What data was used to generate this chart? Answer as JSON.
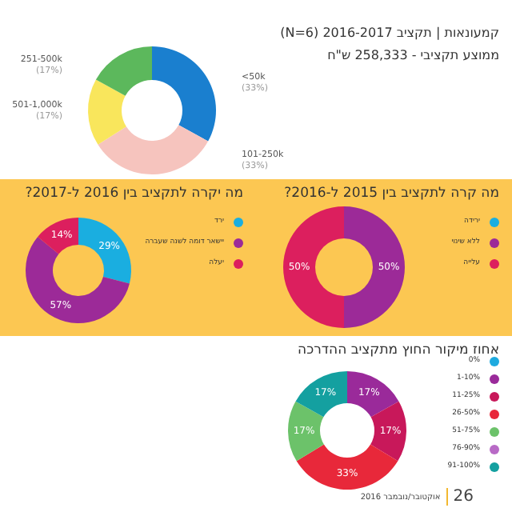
{
  "chart_data": [
    {
      "type": "donut",
      "title": "קמעונאות | תקציב 2016-2017 (N=6)",
      "subtitle": "ממוצע תקציבי - 258,333 ש\"ח",
      "categories": [
        "<50k",
        "101-250k",
        "501-1,000k",
        "251-500k"
      ],
      "values": [
        33,
        33,
        17,
        17
      ],
      "colors": [
        "#1a7fcf",
        "#f6c4be",
        "#f9e65c",
        "#5cb85c"
      ],
      "value_labels": [
        "(33%)",
        "(33%)",
        "(17%)",
        "(17%)"
      ]
    },
    {
      "type": "donut",
      "title": "מה קרה לתקציב בין 2015 ל-2016?",
      "categories": [
        "ירידה",
        "ללא שינוי",
        "עלייה"
      ],
      "values": [
        0,
        50,
        50
      ],
      "colors": [
        "#1aaee0",
        "#9c2a98",
        "#dc1f5e"
      ],
      "value_labels": [
        null,
        "50%",
        "50%"
      ],
      "legend": "right"
    },
    {
      "type": "donut",
      "title": "מה יקרה לתקציב בין 2016 ל-2017?",
      "categories": [
        "ירד",
        "יישאר דומה לשנה שעברה",
        "יעלה"
      ],
      "values": [
        29,
        57,
        14
      ],
      "colors": [
        "#1aaee0",
        "#9c2a98",
        "#dc1f5e"
      ],
      "value_labels": [
        "29%",
        "57%",
        "14%"
      ],
      "legend": "right"
    },
    {
      "type": "donut",
      "title": "אחוז מיקור החוץ מתקציב ההדרכה",
      "categories": [
        "0%",
        "1-10%",
        "11-25%",
        "26-50%",
        "51-75%",
        "76-90%",
        "91-100%"
      ],
      "values": [
        0,
        17,
        17,
        33,
        17,
        0,
        17
      ],
      "colors": [
        "#1eaadf",
        "#9a2a9a",
        "#c8185a",
        "#e8283a",
        "#6cc26a",
        "#b86ac6",
        "#14a0a0"
      ],
      "value_labels": [
        null,
        "17%",
        "17%",
        "33%",
        "17%",
        null,
        "17%"
      ],
      "legend": "right",
      "annotations": [
        "26",
        "אוקטובר/נובמבר 2016"
      ]
    }
  ]
}
